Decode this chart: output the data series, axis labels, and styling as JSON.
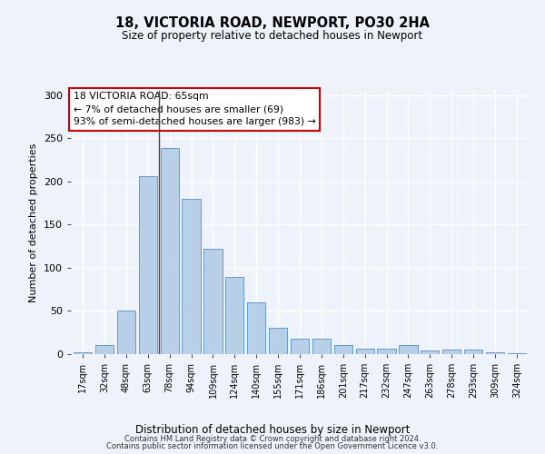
{
  "title1": "18, VICTORIA ROAD, NEWPORT, PO30 2HA",
  "title2": "Size of property relative to detached houses in Newport",
  "xlabel": "Distribution of detached houses by size in Newport",
  "ylabel": "Number of detached properties",
  "bar_labels": [
    "17sqm",
    "32sqm",
    "48sqm",
    "63sqm",
    "78sqm",
    "94sqm",
    "109sqm",
    "124sqm",
    "140sqm",
    "155sqm",
    "171sqm",
    "186sqm",
    "201sqm",
    "217sqm",
    "232sqm",
    "247sqm",
    "263sqm",
    "278sqm",
    "293sqm",
    "309sqm",
    "324sqm"
  ],
  "bar_values": [
    2,
    11,
    51,
    206,
    239,
    180,
    122,
    89,
    60,
    31,
    18,
    18,
    10,
    6,
    6,
    10,
    4,
    5,
    5,
    2,
    1
  ],
  "bar_color": "#b8cfe8",
  "bar_edge_color": "#6699cc",
  "annotation_line1": "18 VICTORIA ROAD: 65sqm",
  "annotation_line2": "← 7% of detached houses are smaller (69)",
  "annotation_line3": "93% of semi-detached houses are larger (983) →",
  "annotation_box_color": "#ffffff",
  "annotation_box_edge_color": "#cc0000",
  "vline_x": 3.5,
  "ylim": [
    0,
    305
  ],
  "yticks": [
    0,
    50,
    100,
    150,
    200,
    250,
    300
  ],
  "footer1": "Contains HM Land Registry data © Crown copyright and database right 2024.",
  "footer2": "Contains public sector information licensed under the Open Government Licence v3.0.",
  "background_color": "#eef2fb",
  "grid_color": "#ffffff"
}
